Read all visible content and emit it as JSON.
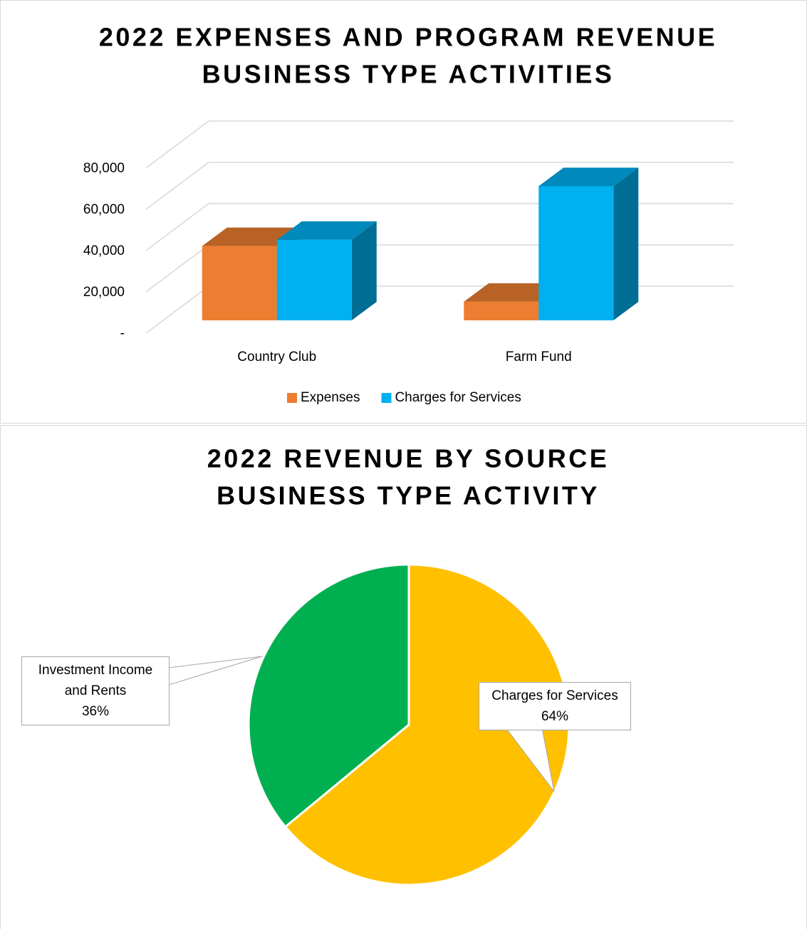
{
  "chart_data": [
    {
      "type": "bar3d",
      "title": [
        "2022 EXPENSES AND PROGRAM REVENUE",
        "BUSINESS TYPE ACTIVITIES"
      ],
      "categories": [
        "Country Club",
        "Farm Fund"
      ],
      "series": [
        {
          "name": "Expenses",
          "color": "#ed7d31",
          "values": [
            36000,
            9000
          ]
        },
        {
          "name": "Charges for Services",
          "color": "#00b0f0",
          "values": [
            39000,
            65000
          ]
        }
      ],
      "ylim": [
        0,
        80000
      ],
      "yticks": [
        {
          "value": 0,
          "label": "-"
        },
        {
          "value": 20000,
          "label": "20,000"
        },
        {
          "value": 40000,
          "label": "40,000"
        },
        {
          "value": 60000,
          "label": "60,000"
        },
        {
          "value": 80000,
          "label": "80,000"
        }
      ],
      "grid": true,
      "legend": "bottom"
    },
    {
      "type": "pie",
      "title": [
        "2022 REVENUE BY SOURCE",
        "BUSINESS TYPE ACTIVITY"
      ],
      "categories": [
        "Charges for Services",
        "Investment Income and Rents"
      ],
      "values": [
        64,
        36
      ],
      "value_labels": [
        "64%",
        "36%"
      ],
      "colors": [
        "#ffc000",
        "#00b050"
      ]
    }
  ]
}
